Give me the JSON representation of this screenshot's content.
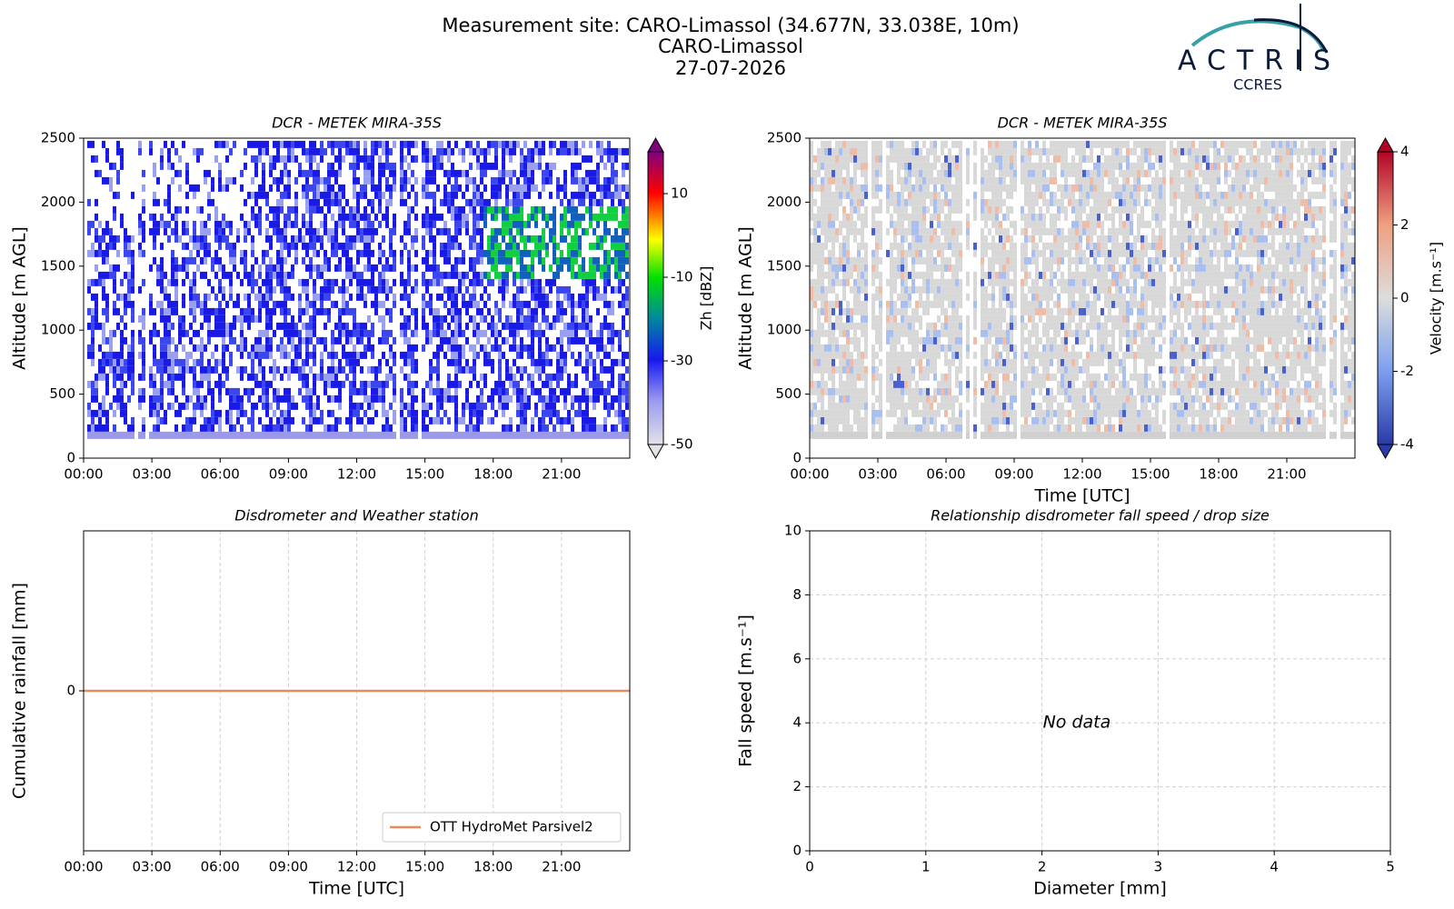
{
  "header": {
    "title": [
      "Measurement site: CARO-Limassol (34.677N, 33.038E, 10m)",
      "CARO-Limassol",
      "27-07-2026"
    ],
    "logo": {
      "name": "ACTRIS",
      "subtitle": "CCRES"
    }
  },
  "chart_data": [
    {
      "type": "heatmap",
      "title": "DCR - METEK MIRA-35S",
      "ylabel": "Altitude [m AGL]",
      "xlim": [
        0,
        24
      ],
      "xticks": [
        {
          "value": 0,
          "label": "00:00"
        },
        {
          "value": 3,
          "label": "03:00"
        },
        {
          "value": 6,
          "label": "06:00"
        },
        {
          "value": 9,
          "label": "09:00"
        },
        {
          "value": 12,
          "label": "12:00"
        },
        {
          "value": 15,
          "label": "15:00"
        },
        {
          "value": 18,
          "label": "18:00"
        },
        {
          "value": 21,
          "label": "21:00"
        }
      ],
      "ylim": [
        0,
        2500
      ],
      "yticks": [
        0,
        500,
        1000,
        1500,
        2000,
        2500
      ],
      "colorbar": {
        "label": "Zh [dBZ]",
        "lim": [
          -50,
          20
        ],
        "ticks": [
          -50,
          -30,
          -10,
          10
        ]
      }
    },
    {
      "type": "heatmap",
      "title": "DCR - METEK MIRA-35S",
      "ylabel": "Altitude [m AGL]",
      "xlabel": "Time [UTC]",
      "xlim": [
        0,
        24
      ],
      "xticks": [
        {
          "value": 0,
          "label": "00:00"
        },
        {
          "value": 3,
          "label": "03:00"
        },
        {
          "value": 6,
          "label": "06:00"
        },
        {
          "value": 9,
          "label": "09:00"
        },
        {
          "value": 12,
          "label": "12:00"
        },
        {
          "value": 15,
          "label": "15:00"
        },
        {
          "value": 18,
          "label": "18:00"
        },
        {
          "value": 21,
          "label": "21:00"
        }
      ],
      "ylim": [
        0,
        2500
      ],
      "yticks": [
        0,
        500,
        1000,
        1500,
        2000,
        2500
      ],
      "colorbar": {
        "label": "Velocity [m.s⁻¹]",
        "lim": [
          -4,
          4
        ],
        "ticks": [
          -4,
          -2,
          0,
          2,
          4
        ]
      }
    },
    {
      "type": "line",
      "title": "Disdrometer and Weather station",
      "ylabel": "Cumulative rainfall [mm]",
      "xlabel": "Time [UTC]",
      "x": [
        0,
        24
      ],
      "series": [
        {
          "name": "OTT HydroMet Parsivel2",
          "color": "#e8895f",
          "values": [
            0,
            0
          ]
        }
      ],
      "xlim": [
        0,
        24
      ],
      "xticks": [
        {
          "value": 0,
          "label": "00:00"
        },
        {
          "value": 3,
          "label": "03:00"
        },
        {
          "value": 6,
          "label": "06:00"
        },
        {
          "value": 9,
          "label": "09:00"
        },
        {
          "value": 12,
          "label": "12:00"
        },
        {
          "value": 15,
          "label": "15:00"
        },
        {
          "value": 18,
          "label": "18:00"
        },
        {
          "value": 21,
          "label": "21:00"
        }
      ],
      "ylim": [
        -1,
        1
      ],
      "yticks": [
        0
      ],
      "grid": true,
      "legend": "lower right"
    },
    {
      "type": "scatter",
      "title": "Relationship disdrometer fall speed / drop size",
      "xlabel": "Diameter [mm]",
      "ylabel": "Fall speed [m.s⁻¹]",
      "annotation": "No data",
      "xlim": [
        0,
        5
      ],
      "xticks": [
        0,
        1,
        2,
        3,
        4,
        5
      ],
      "ylim": [
        0,
        10
      ],
      "yticks": [
        0,
        2,
        4,
        6,
        8,
        10
      ],
      "grid": true
    }
  ]
}
